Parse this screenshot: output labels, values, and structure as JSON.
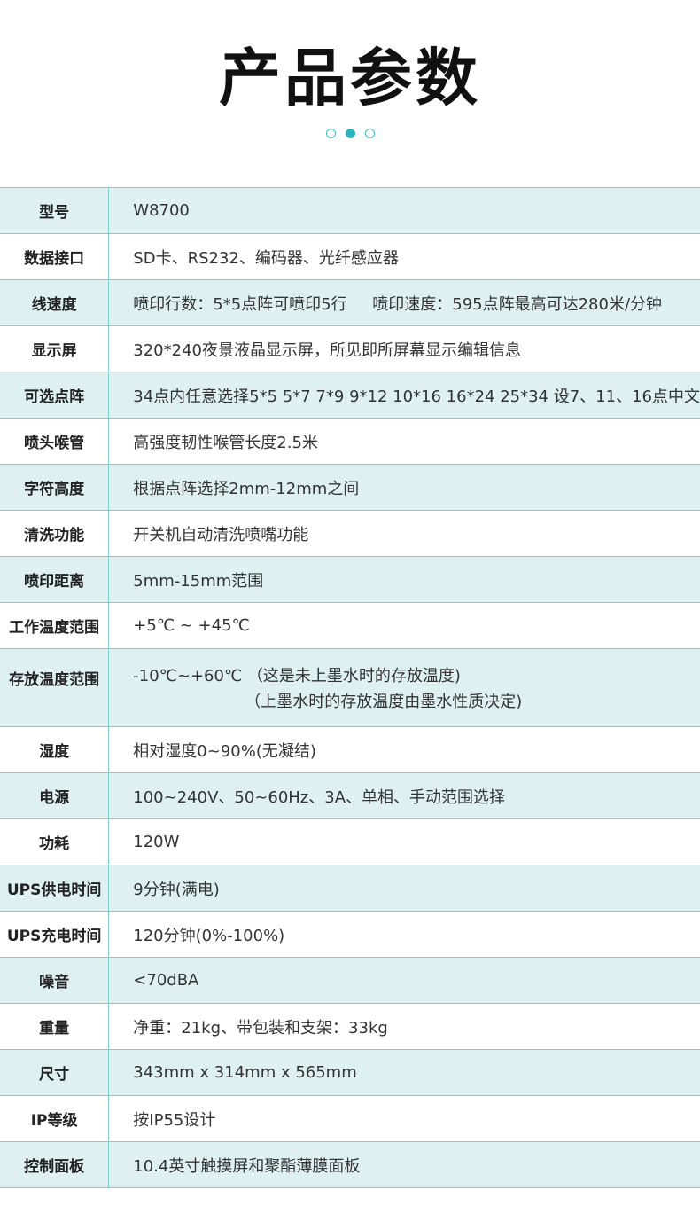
{
  "title": "产品参数",
  "pager": {
    "count": 3,
    "active_index": 1
  },
  "colors": {
    "accent": "#2fb3bd",
    "row_alt": "#dff0f0",
    "border": "#7fcfcf"
  },
  "specs": [
    {
      "label": "型号",
      "value": "W8700"
    },
    {
      "label": "数据接口",
      "value": "SD卡、RS232、编码器、光纤感应器"
    },
    {
      "label": "线速度",
      "value": "喷印行数：5*5点阵可喷印5行     喷印速度：595点阵最高可达280米/分钟"
    },
    {
      "label": "显示屏",
      "value": "320*240夜景液晶显示屏，所见即所屏幕显示编辑信息"
    },
    {
      "label": "可选点阵",
      "value": "34点内任意选择5*5 5*7 7*9 9*12 10*16 16*24 25*34 设7、11、16点中文"
    },
    {
      "label": "喷头喉管",
      "value": "高强度韧性喉管长度2.5米"
    },
    {
      "label": "字符高度",
      "value": "根据点阵选择2mm-12mm之间"
    },
    {
      "label": "清洗功能",
      "value": "开关机自动清洗喷嘴功能"
    },
    {
      "label": "喷印距离",
      "value": "5mm-15mm范围"
    },
    {
      "label": "工作温度范围",
      "value": "+5℃ ~ +45℃"
    },
    {
      "label": "存放温度范围",
      "value": "-10℃~+60℃ （这是未上墨水时的存放温度)",
      "value2": "（上墨水时的存放温度由墨水性质决定)"
    },
    {
      "label": "湿度",
      "value": "相对湿度0~90%(无凝结)"
    },
    {
      "label": "电源",
      "value": "100~240V、50~60Hz、3A、单相、手动范围选择"
    },
    {
      "label": "功耗",
      "value": "120W"
    },
    {
      "label": "UPS供电时间",
      "value": "9分钟(满电)"
    },
    {
      "label": "UPS充电时间",
      "value": "120分钟(0%-100%)"
    },
    {
      "label": "噪音",
      "value": "<70dBA"
    },
    {
      "label": "重量",
      "value": "净重：21kg、带包装和支架：33kg"
    },
    {
      "label": "尺寸",
      "value": "343mm x 314mm x 565mm"
    },
    {
      "label": "IP等级",
      "value": "按IP55设计"
    },
    {
      "label": "控制面板",
      "value": "10.4英寸触摸屏和聚酯薄膜面板"
    }
  ]
}
